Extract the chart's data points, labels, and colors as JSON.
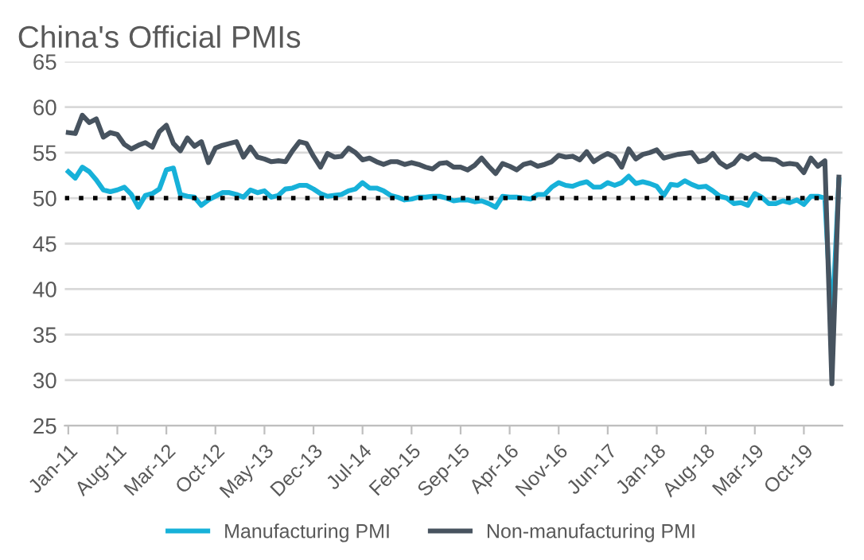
{
  "chart_data": {
    "type": "line",
    "title": "China's Official PMIs",
    "categories": [
      "Jan-11",
      null,
      null,
      null,
      null,
      null,
      null,
      "Aug-11",
      null,
      null,
      null,
      null,
      null,
      null,
      "Mar-12",
      null,
      null,
      null,
      null,
      null,
      null,
      "Oct-12",
      null,
      null,
      null,
      null,
      null,
      null,
      "May-13",
      null,
      null,
      null,
      null,
      null,
      null,
      "Dec-13",
      null,
      null,
      null,
      null,
      null,
      null,
      "Jul-14",
      null,
      null,
      null,
      null,
      null,
      null,
      "Feb-15",
      null,
      null,
      null,
      null,
      null,
      null,
      "Sep-15",
      null,
      null,
      null,
      null,
      null,
      null,
      "Apr-16",
      null,
      null,
      null,
      null,
      null,
      null,
      "Nov-16",
      null,
      null,
      null,
      null,
      null,
      null,
      "Jun-17",
      null,
      null,
      null,
      null,
      null,
      null,
      "Jan-18",
      null,
      null,
      null,
      null,
      null,
      null,
      "Aug-18",
      null,
      null,
      null,
      null,
      null,
      null,
      "Mar-19",
      null,
      null,
      null,
      null,
      null,
      null,
      "Oct-19",
      null,
      null,
      null,
      null,
      null
    ],
    "series": [
      {
        "name": "Manufacturing PMI",
        "color": "#17b1d9",
        "values": [
          52.9,
          52.2,
          53.4,
          52.9,
          52.0,
          50.9,
          50.7,
          50.9,
          51.2,
          50.4,
          49.0,
          50.3,
          50.5,
          51.0,
          53.1,
          53.3,
          50.4,
          50.2,
          50.1,
          49.2,
          49.8,
          50.2,
          50.6,
          50.6,
          50.4,
          50.1,
          50.9,
          50.6,
          50.8,
          50.1,
          50.3,
          51.0,
          51.1,
          51.4,
          51.4,
          51.0,
          50.5,
          50.2,
          50.3,
          50.4,
          50.8,
          51.0,
          51.7,
          51.1,
          51.1,
          50.8,
          50.3,
          50.1,
          49.8,
          49.9,
          50.1,
          50.1,
          50.2,
          50.2,
          50.0,
          49.7,
          49.8,
          49.8,
          49.6,
          49.7,
          49.4,
          49.0,
          50.2,
          50.1,
          50.1,
          50.0,
          49.9,
          50.4,
          50.4,
          51.2,
          51.7,
          51.4,
          51.3,
          51.6,
          51.8,
          51.2,
          51.2,
          51.7,
          51.4,
          51.7,
          52.4,
          51.6,
          51.8,
          51.6,
          51.3,
          50.3,
          51.5,
          51.4,
          51.9,
          51.5,
          51.2,
          51.3,
          50.8,
          50.2,
          50.0,
          49.4,
          49.5,
          49.2,
          50.5,
          50.1,
          49.4,
          49.4,
          49.7,
          49.5,
          49.8,
          49.3,
          50.2,
          50.2,
          50.0,
          35.7,
          52.0
        ]
      },
      {
        "name": "Non-manufacturing PMI",
        "color": "#47535f",
        "values": [
          57.2,
          57.1,
          59.1,
          58.3,
          58.7,
          56.7,
          57.2,
          57.0,
          55.9,
          55.4,
          55.8,
          56.1,
          55.6,
          57.3,
          58.0,
          56.0,
          55.2,
          56.6,
          55.7,
          56.2,
          53.9,
          55.5,
          55.8,
          56.0,
          56.2,
          54.5,
          55.6,
          54.5,
          54.3,
          54.0,
          54.1,
          54.0,
          55.2,
          56.2,
          56.0,
          54.6,
          53.4,
          54.9,
          54.5,
          54.6,
          55.5,
          55.0,
          54.2,
          54.4,
          54.0,
          53.7,
          54.0,
          54.0,
          53.7,
          53.9,
          53.7,
          53.4,
          53.2,
          53.8,
          53.9,
          53.4,
          53.4,
          53.1,
          53.6,
          54.4,
          53.5,
          52.7,
          53.8,
          53.5,
          53.1,
          53.7,
          53.9,
          53.5,
          53.7,
          54.0,
          54.7,
          54.5,
          54.6,
          54.2,
          55.1,
          54.0,
          54.5,
          54.9,
          54.5,
          53.4,
          55.4,
          54.3,
          54.8,
          55.0,
          55.3,
          54.4,
          54.6,
          54.8,
          54.9,
          55.0,
          54.0,
          54.2,
          54.9,
          53.9,
          53.4,
          53.8,
          54.7,
          54.3,
          54.8,
          54.3,
          54.3,
          54.2,
          53.7,
          53.8,
          53.7,
          52.8,
          54.4,
          53.5,
          54.1,
          29.6,
          52.3
        ]
      }
    ],
    "ylim": [
      25,
      65
    ],
    "yticks": [
      25,
      30,
      35,
      40,
      45,
      50,
      55,
      60,
      65
    ],
    "grid": "y",
    "ref_lines": [
      {
        "axis": "y",
        "value": 50,
        "color": "#000000",
        "line_style": "dotted"
      }
    ],
    "legend": "bottom",
    "marker": "none",
    "line_style": "solid"
  }
}
